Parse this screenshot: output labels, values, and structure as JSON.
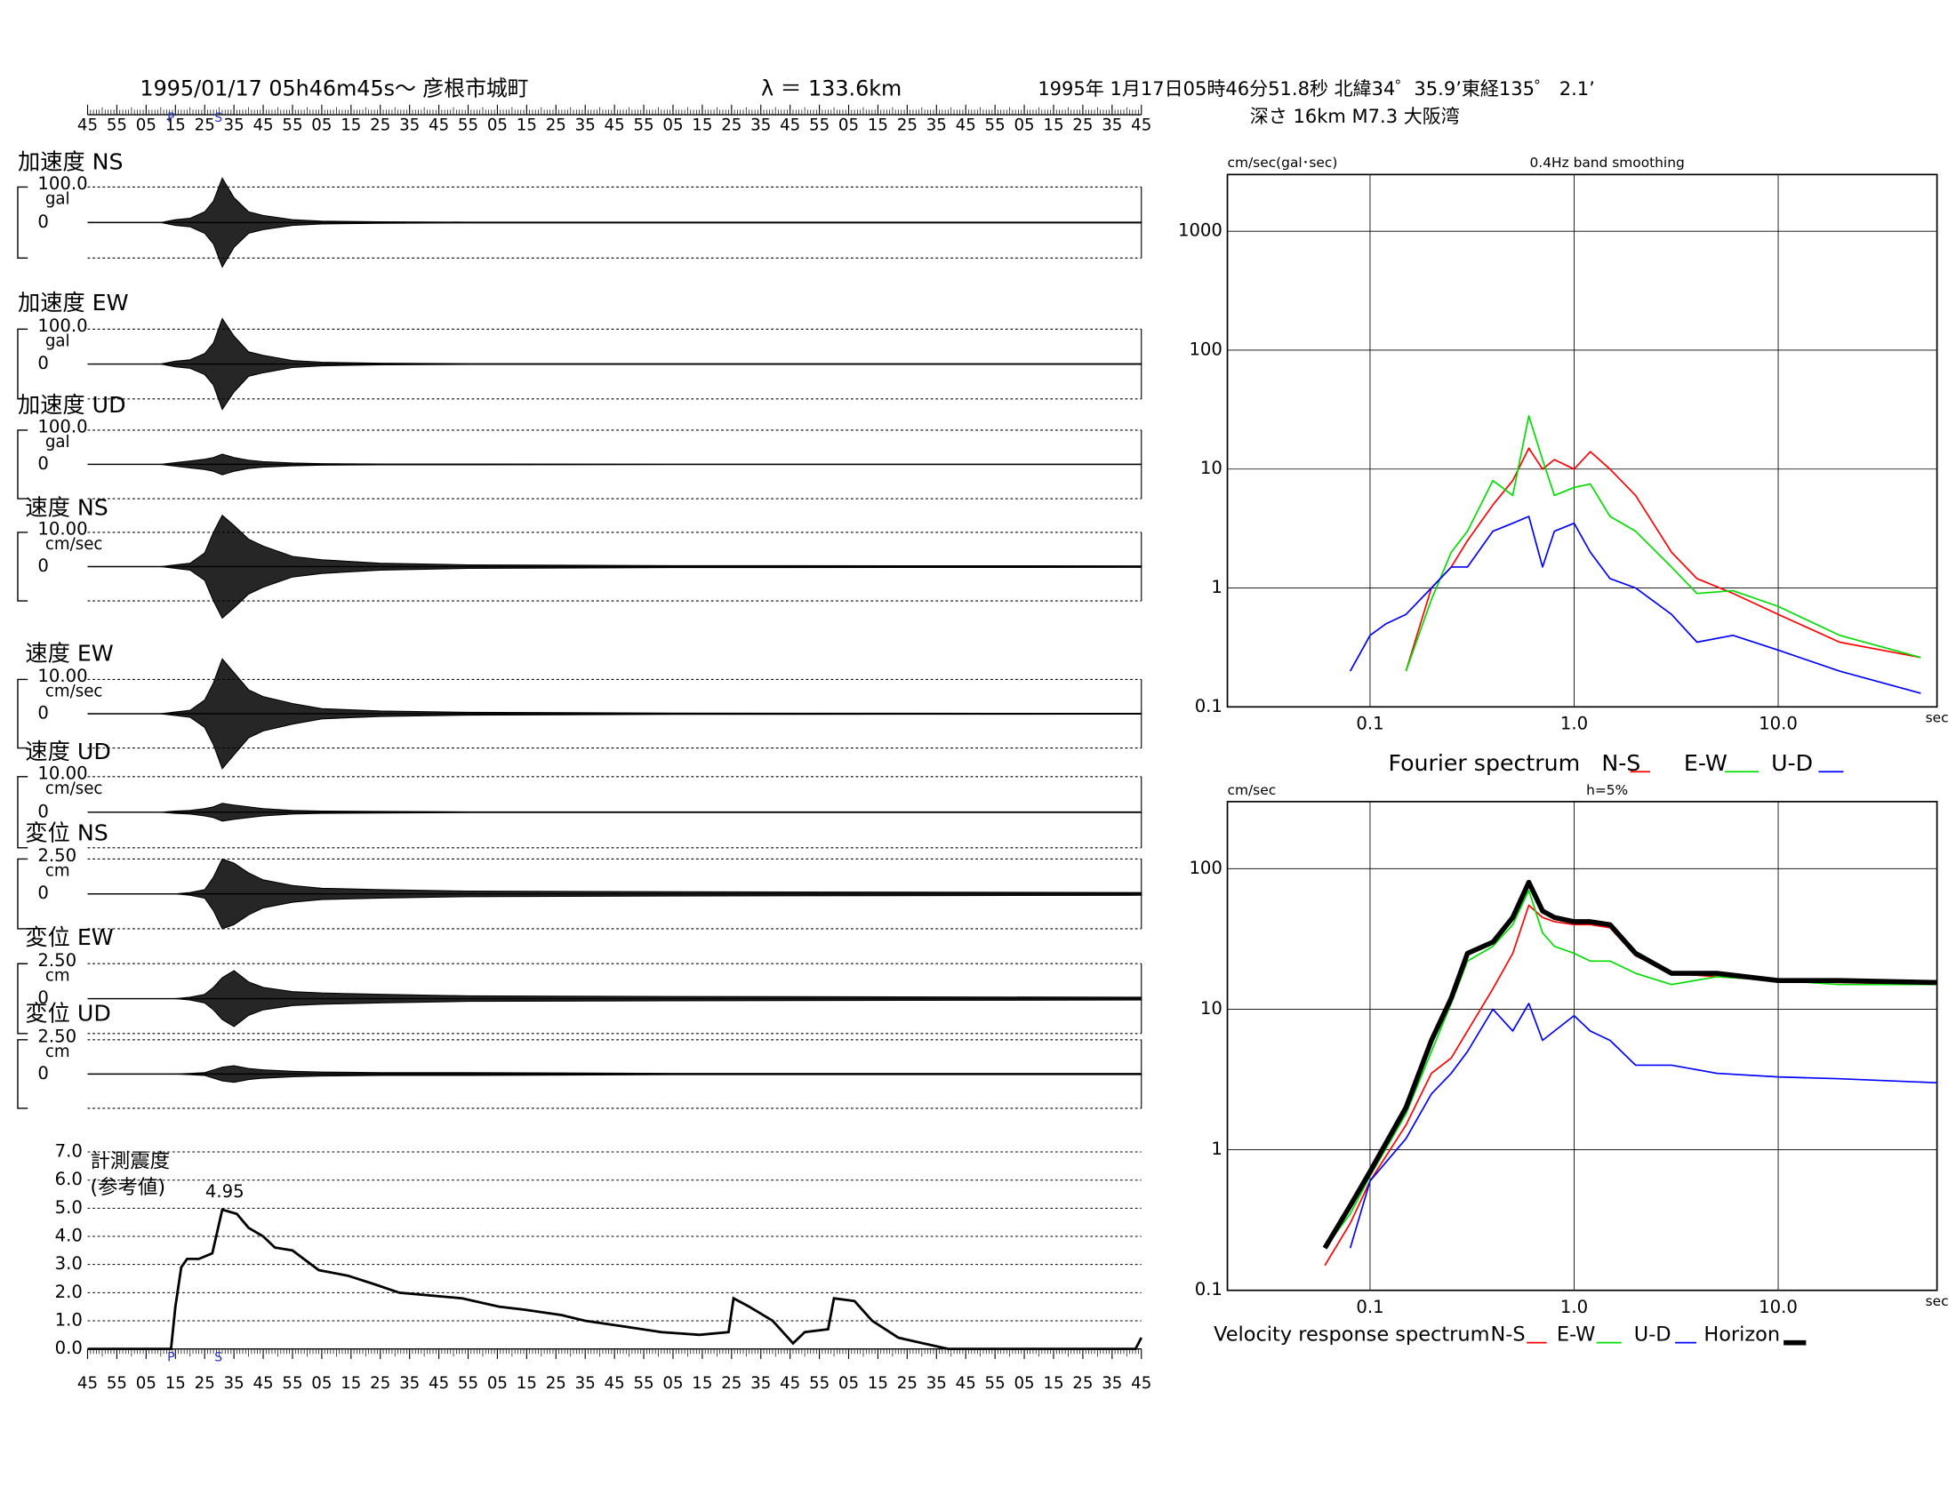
{
  "chart_data": [
    {
      "type": "waveforms",
      "title": "1995/01/17  05h46m45s～  彦根市城町",
      "distance": "λ ＝ 133.6km",
      "annotations": [
        "1995年 1月17日05時46分51.8秒 北緯34゜35.9’東経135゜ 2.1’",
        "深さ 16km M7.3 大阪湾"
      ],
      "xlim": [
        0,
        360
      ],
      "xticks": [
        {
          "value": 0,
          "label": "45"
        },
        {
          "value": 10,
          "label": "55"
        },
        {
          "value": 20,
          "label": "05"
        },
        {
          "value": 30,
          "label": "15"
        },
        {
          "value": 40,
          "label": "25"
        },
        {
          "value": 50,
          "label": "35"
        },
        {
          "value": 60,
          "label": "45"
        },
        {
          "value": 70,
          "label": "55"
        },
        {
          "value": 80,
          "label": "05"
        },
        {
          "value": 90,
          "label": "15"
        },
        {
          "value": 100,
          "label": "25"
        },
        {
          "value": 110,
          "label": "35"
        },
        {
          "value": 120,
          "label": "45"
        },
        {
          "value": 130,
          "label": "55"
        },
        {
          "value": 140,
          "label": "05"
        },
        {
          "value": 150,
          "label": "15"
        },
        {
          "value": 160,
          "label": "25"
        },
        {
          "value": 170,
          "label": "35"
        },
        {
          "value": 180,
          "label": "45"
        },
        {
          "value": 190,
          "label": "55"
        },
        {
          "value": 200,
          "label": "05"
        },
        {
          "value": 210,
          "label": "15"
        },
        {
          "value": 220,
          "label": "25"
        },
        {
          "value": 230,
          "label": "35"
        },
        {
          "value": 240,
          "label": "45"
        },
        {
          "value": 250,
          "label": "55"
        },
        {
          "value": 260,
          "label": "05"
        },
        {
          "value": 270,
          "label": "15"
        },
        {
          "value": 280,
          "label": "25"
        },
        {
          "value": 290,
          "label": "35"
        },
        {
          "value": 300,
          "label": "45"
        },
        {
          "value": 310,
          "label": "55"
        },
        {
          "value": 320,
          "label": "05"
        },
        {
          "value": 330,
          "label": "15"
        },
        {
          "value": 340,
          "label": "25"
        },
        {
          "value": 350,
          "label": "35"
        },
        {
          "value": 360,
          "label": "45"
        }
      ],
      "markers": [
        {
          "label": "P",
          "x": 28.5
        },
        {
          "label": "S",
          "x": 44.7
        }
      ],
      "x": [
        0,
        25,
        30,
        35,
        40,
        43,
        46,
        50,
        55,
        60,
        70,
        80,
        100,
        130,
        200,
        360
      ],
      "series": [
        {
          "name": "加速度 NS",
          "unit": "gal",
          "color": "#000000",
          "yticks": [
            {
              "value": 100,
              "label": "100.0"
            },
            0
          ],
          "values": [
            0,
            0,
            8,
            12,
            30,
            60,
            125,
            70,
            30,
            20,
            8,
            4,
            2,
            1,
            1,
            1
          ]
        },
        {
          "name": "加速度 EW",
          "unit": "gal",
          "color": "#000000",
          "yticks": [
            {
              "value": 100,
              "label": "100.0"
            },
            0
          ],
          "values": [
            0,
            0,
            8,
            12,
            30,
            60,
            130,
            80,
            35,
            25,
            10,
            5,
            2,
            1,
            1,
            1
          ]
        },
        {
          "name": "加速度 UD",
          "unit": "gal",
          "color": "#000000",
          "yticks": [
            {
              "value": 100,
              "label": "100.0"
            },
            0
          ],
          "values": [
            0,
            0,
            5,
            10,
            15,
            20,
            30,
            20,
            12,
            8,
            4,
            2,
            1,
            1,
            0.5,
            0.5
          ]
        },
        {
          "name": "速度 NS",
          "unit": "cm/sec",
          "color": "#000000",
          "yticks": [
            {
              "value": 10,
              "label": "10.00"
            },
            0
          ],
          "values": [
            0,
            0,
            0.5,
            1,
            4,
            10,
            15,
            12,
            8,
            6,
            3,
            2,
            1,
            0.5,
            0.3,
            0.2
          ]
        },
        {
          "name": "速度 EW",
          "unit": "cm/sec",
          "color": "#000000",
          "yticks": [
            {
              "value": 10,
              "label": "10.00"
            },
            0
          ],
          "values": [
            0,
            0,
            0.5,
            1,
            4,
            9,
            16,
            12,
            7,
            5,
            3,
            1.5,
            0.8,
            0.4,
            0.2,
            0.1
          ]
        },
        {
          "name": "速度 UD",
          "unit": "cm/sec",
          "color": "#000000",
          "yticks": [
            {
              "value": 10,
              "label": "10.00"
            },
            0
          ],
          "values": [
            0,
            0,
            0.3,
            0.5,
            1,
            1.5,
            2.5,
            2,
            1.5,
            1,
            0.5,
            0.3,
            0.2,
            0.1,
            0.1,
            0.1
          ]
        },
        {
          "name": "変位 NS",
          "unit": "cm",
          "color": "#000000",
          "yticks": [
            {
              "value": 2.5,
              "label": "2.50"
            },
            0
          ],
          "values": [
            0,
            0,
            0,
            0.1,
            0.3,
            1.2,
            2.5,
            2.2,
            1.5,
            1,
            0.6,
            0.4,
            0.3,
            0.2,
            0.15,
            0.1
          ]
        },
        {
          "name": "変位 EW",
          "unit": "cm",
          "color": "#000000",
          "yticks": [
            {
              "value": 2.5,
              "label": "2.50"
            },
            0
          ],
          "values": [
            0,
            0,
            0,
            0.1,
            0.3,
            0.8,
            1.5,
            2,
            1.2,
            0.8,
            0.5,
            0.4,
            0.3,
            0.2,
            0.15,
            0.1
          ]
        },
        {
          "name": "変位 UD",
          "unit": "cm",
          "color": "#000000",
          "yticks": [
            {
              "value": 2.5,
              "label": "2.50"
            },
            0
          ],
          "values": [
            0,
            0,
            0,
            0.05,
            0.1,
            0.3,
            0.5,
            0.6,
            0.4,
            0.3,
            0.2,
            0.15,
            0.1,
            0.1,
            0.05,
            0.05
          ]
        }
      ]
    },
    {
      "type": "intensity",
      "ylabel": "計測震度",
      "ylabel2": "(参考値)",
      "xlim": [
        0,
        360
      ],
      "xticks": [
        {
          "value": 0,
          "label": "45"
        },
        {
          "value": 10,
          "label": "55"
        },
        {
          "value": 20,
          "label": "05"
        },
        {
          "value": 30,
          "label": "15"
        },
        {
          "value": 40,
          "label": "25"
        },
        {
          "value": 50,
          "label": "35"
        },
        {
          "value": 60,
          "label": "45"
        },
        {
          "value": 70,
          "label": "55"
        },
        {
          "value": 80,
          "label": "05"
        },
        {
          "value": 90,
          "label": "15"
        },
        {
          "value": 100,
          "label": "25"
        },
        {
          "value": 110,
          "label": "35"
        },
        {
          "value": 120,
          "label": "45"
        },
        {
          "value": 130,
          "label": "55"
        },
        {
          "value": 140,
          "label": "05"
        },
        {
          "value": 150,
          "label": "15"
        },
        {
          "value": 160,
          "label": "25"
        },
        {
          "value": 170,
          "label": "35"
        },
        {
          "value": 180,
          "label": "45"
        },
        {
          "value": 190,
          "label": "55"
        },
        {
          "value": 200,
          "label": "05"
        },
        {
          "value": 210,
          "label": "15"
        },
        {
          "value": 220,
          "label": "25"
        },
        {
          "value": 230,
          "label": "35"
        },
        {
          "value": 240,
          "label": "45"
        },
        {
          "value": 250,
          "label": "55"
        },
        {
          "value": 260,
          "label": "05"
        },
        {
          "value": 270,
          "label": "15"
        },
        {
          "value": 280,
          "label": "25"
        },
        {
          "value": 290,
          "label": "35"
        },
        {
          "value": 300,
          "label": "45"
        },
        {
          "value": 310,
          "label": "55"
        },
        {
          "value": 320,
          "label": "05"
        },
        {
          "value": 330,
          "label": "15"
        },
        {
          "value": 340,
          "label": "25"
        },
        {
          "value": 350,
          "label": "35"
        },
        {
          "value": 360,
          "label": "45"
        }
      ],
      "ylim": [
        0,
        7
      ],
      "yticks": [
        {
          "value": 0,
          "label": "0.0"
        },
        {
          "value": 1,
          "label": "1.0"
        },
        {
          "value": 2,
          "label": "2.0"
        },
        {
          "value": 3,
          "label": "3.0"
        },
        {
          "value": 4,
          "label": "4.0"
        },
        {
          "value": 5,
          "label": "5.0"
        },
        {
          "value": 6,
          "label": "6.0"
        },
        {
          "value": 7,
          "label": "7.0"
        }
      ],
      "grid": true,
      "markers": [
        {
          "label": "P",
          "x": 28.5
        },
        {
          "label": "S",
          "x": 44.7
        }
      ],
      "peak": {
        "x": 46,
        "value": 4.95
      },
      "color": "#000000",
      "x": [
        0,
        28.5,
        30,
        32,
        34,
        38,
        42.6,
        46,
        51,
        55,
        60,
        64,
        70,
        79,
        89,
        98,
        106.5,
        117,
        128,
        140.6,
        149,
        162,
        170,
        183,
        196,
        209,
        219,
        220.7,
        226,
        234,
        241,
        245,
        253,
        255,
        262,
        268,
        277,
        285.5,
        294,
        358,
        360
      ],
      "values": [
        0,
        0,
        1.5,
        2.9,
        3.2,
        3.2,
        3.4,
        4.95,
        4.8,
        4.3,
        4,
        3.6,
        3.5,
        2.8,
        2.6,
        2.3,
        2,
        1.9,
        1.8,
        1.5,
        1.4,
        1.2,
        1,
        0.8,
        0.6,
        0.5,
        0.6,
        1.8,
        1.5,
        1,
        0.2,
        0.6,
        0.7,
        1.8,
        1.7,
        1,
        0.4,
        0.2,
        0,
        0,
        0.4
      ]
    },
    {
      "type": "logline",
      "title": "0.4Hz band smoothing",
      "ylabel": "cm/sec(gal･sec)",
      "caption": "Fourier spectrum",
      "xunit": "sec",
      "xscale": "log",
      "yscale": "log",
      "grid": true,
      "xlim": [
        0.02,
        60
      ],
      "ylim": [
        0.1,
        3000
      ],
      "xticks": [
        0.1,
        {
          "value": 1,
          "label": "1.0"
        },
        {
          "value": 10,
          "label": "10.0"
        }
      ],
      "yticks": [
        0.1,
        1,
        10,
        100,
        1000
      ],
      "x": [
        0.08,
        0.1,
        0.12,
        0.15,
        0.2,
        0.25,
        0.3,
        0.4,
        0.5,
        0.6,
        0.7,
        0.8,
        1,
        1.2,
        1.5,
        2,
        3,
        4,
        6,
        10,
        20,
        50
      ],
      "series": [
        {
          "name": "N-S",
          "color": "#ff0000",
          "linewidth": 1.2,
          "values": [
            null,
            null,
            null,
            0.2,
            1,
            1.5,
            2.5,
            5,
            8,
            15,
            10,
            12,
            10,
            14,
            10,
            6,
            2,
            1.2,
            0.9,
            0.6,
            0.35,
            0.26
          ]
        },
        {
          "name": "E-W",
          "color": "#00dd00",
          "linewidth": 1.2,
          "values": [
            null,
            null,
            null,
            0.2,
            0.8,
            2,
            3,
            8,
            6,
            28,
            12,
            6,
            7,
            7.5,
            4,
            3,
            1.5,
            0.9,
            0.95,
            0.7,
            0.4,
            0.26
          ]
        },
        {
          "name": "U-D",
          "color": "#0000ff",
          "linewidth": 1.2,
          "values": [
            0.2,
            0.4,
            0.5,
            0.6,
            1,
            1.5,
            1.5,
            3,
            3.5,
            4,
            1.5,
            3,
            3.5,
            2,
            1.2,
            1,
            0.6,
            0.35,
            0.4,
            0.3,
            0.2,
            0.13
          ]
        }
      ]
    },
    {
      "type": "logline",
      "title": "h=5%",
      "ylabel": "cm/sec",
      "caption": "Velocity response spectrum",
      "xunit": "sec",
      "xscale": "log",
      "yscale": "log",
      "grid": true,
      "xlim": [
        0.02,
        60
      ],
      "ylim": [
        0.1,
        300
      ],
      "xticks": [
        0.1,
        {
          "value": 1,
          "label": "1.0"
        },
        {
          "value": 10,
          "label": "10.0"
        }
      ],
      "yticks": [
        0.1,
        1,
        10,
        100
      ],
      "x": [
        0.06,
        0.08,
        0.1,
        0.15,
        0.2,
        0.25,
        0.3,
        0.4,
        0.5,
        0.6,
        0.7,
        0.8,
        1,
        1.2,
        1.5,
        2,
        3,
        5,
        10,
        20,
        60
      ],
      "series": [
        {
          "name": "N-S",
          "color": "#ff0000",
          "linewidth": 1.2,
          "values": [
            0.15,
            0.3,
            0.6,
            1.5,
            3.5,
            4.5,
            7,
            14,
            25,
            55,
            45,
            42,
            40,
            40,
            38,
            24,
            18,
            17,
            16,
            15.5,
            15
          ]
        },
        {
          "name": "E-W",
          "color": "#00dd00",
          "linewidth": 1.2,
          "values": [
            0.2,
            0.35,
            0.65,
            1.8,
            5,
            11,
            22,
            28,
            40,
            70,
            35,
            28,
            25,
            22,
            22,
            18,
            15,
            17,
            16,
            15,
            15
          ]
        },
        {
          "name": "U-D",
          "color": "#0000ff",
          "linewidth": 1.2,
          "values": [
            null,
            0.2,
            0.6,
            1.2,
            2.5,
            3.5,
            5,
            10,
            7,
            11,
            6,
            7,
            9,
            7,
            6,
            4,
            4,
            3.5,
            3.3,
            3.2,
            3
          ]
        },
        {
          "name": "Horizon",
          "color": "#000000",
          "linewidth": 4,
          "values": [
            0.2,
            0.4,
            0.7,
            2,
            6,
            12,
            25,
            30,
            45,
            80,
            50,
            45,
            42,
            42,
            40,
            25,
            18,
            18,
            16,
            16,
            15.5
          ]
        }
      ]
    }
  ]
}
